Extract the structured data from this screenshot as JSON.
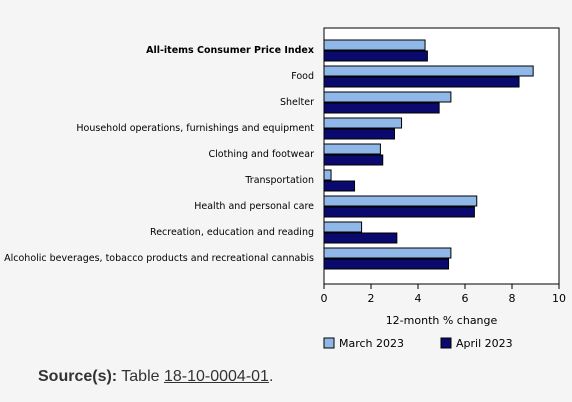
{
  "chart_data": {
    "type": "bar",
    "orientation": "horizontal",
    "categories": [
      "All-items Consumer Price Index",
      "Food",
      "Shelter",
      "Household operations, furnishings and equipment",
      "Clothing and footwear",
      "Transportation",
      "Health and personal care",
      "Recreation, education and reading",
      "Alcoholic beverages, tobacco products and recreational cannabis"
    ],
    "bold_category": "All-items Consumer Price Index",
    "series": [
      {
        "name": "March 2023",
        "color": "#8fb8e8",
        "values": [
          4.3,
          8.9,
          5.4,
          3.3,
          2.4,
          0.3,
          6.5,
          1.6,
          5.4
        ]
      },
      {
        "name": "April 2023",
        "color": "#0a0a6e",
        "values": [
          4.4,
          8.3,
          4.9,
          3.0,
          2.5,
          1.3,
          6.4,
          3.1,
          5.3
        ]
      }
    ],
    "xlabel": "12-month % change",
    "xlim": [
      0,
      10
    ],
    "xticks": [
      "0",
      "2",
      "4",
      "6",
      "8",
      "10"
    ],
    "grid": false,
    "legend_position": "bottom"
  },
  "source": {
    "label": "Source(s):",
    "text": "Table",
    "link": "18-10-0004-01",
    "end": "."
  }
}
